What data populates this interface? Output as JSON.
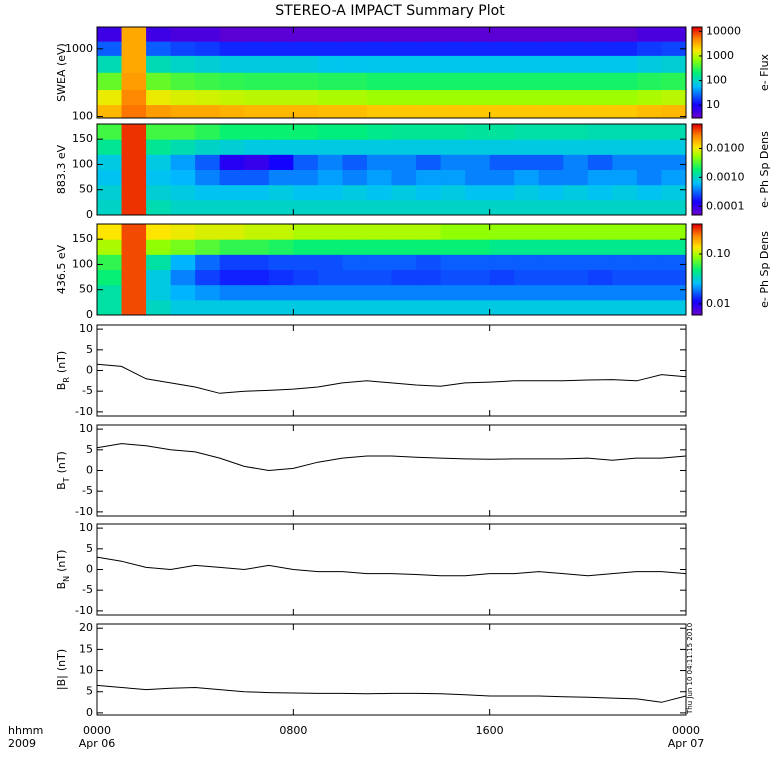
{
  "title": "STEREO-A IMPACT Summary Plot",
  "timestamp": "Thu Jun 10 04:11:15 2010",
  "chart_data": [
    {
      "type": "heatmap",
      "ylabel": "SWEA (eV)",
      "log_y": true,
      "ylim": [
        95,
        2100
      ],
      "yticks": [
        100,
        1000
      ],
      "xbins": [
        0,
        1,
        2,
        3,
        4,
        5,
        6,
        7,
        8,
        9,
        10,
        11,
        12,
        13,
        14,
        15,
        16,
        17,
        18,
        19,
        20,
        21,
        22,
        23,
        24
      ],
      "ybins": [
        95,
        150,
        250,
        450,
        800,
        1300,
        2100
      ],
      "values": [
        [
          3000,
          6000,
          4000,
          3500,
          3500,
          3200,
          3000,
          3000,
          3000,
          2800,
          2800,
          2500,
          2500,
          2500,
          2500,
          2500,
          2500,
          2500,
          2500,
          2500,
          2500,
          2500,
          2800,
          3000
        ],
        [
          1500,
          5000,
          1500,
          1300,
          1200,
          1100,
          1000,
          1000,
          1000,
          900,
          900,
          800,
          800,
          800,
          800,
          800,
          800,
          800,
          800,
          800,
          800,
          800,
          900,
          1000
        ],
        [
          500,
          4000,
          500,
          400,
          350,
          320,
          300,
          300,
          300,
          280,
          280,
          250,
          250,
          250,
          250,
          250,
          250,
          250,
          250,
          250,
          250,
          250,
          280,
          300
        ],
        [
          120,
          3500,
          120,
          100,
          90,
          80,
          80,
          80,
          80,
          70,
          70,
          70,
          70,
          70,
          70,
          70,
          70,
          70,
          70,
          70,
          70,
          70,
          80,
          90
        ],
        [
          25,
          3500,
          25,
          20,
          18,
          15,
          15,
          15,
          15,
          15,
          15,
          15,
          15,
          15,
          15,
          15,
          15,
          15,
          15,
          15,
          15,
          15,
          18,
          20
        ],
        [
          6,
          3500,
          6,
          5,
          5,
          4,
          4,
          4,
          4,
          4,
          4,
          4,
          4,
          4,
          4,
          4,
          4,
          4,
          4,
          4,
          4,
          4,
          5,
          5
        ]
      ],
      "log_z": true,
      "zlim": [
        3,
        15000
      ],
      "zticks": [
        10,
        100,
        1000,
        10000
      ],
      "zlabel": "e- Flux"
    },
    {
      "type": "heatmap",
      "ylabel": "883.3 eV",
      "ylim": [
        0,
        180
      ],
      "yticks": [
        0,
        50,
        100,
        150
      ],
      "xbins": [
        0,
        1,
        2,
        3,
        4,
        5,
        6,
        7,
        8,
        9,
        10,
        11,
        12,
        13,
        14,
        15,
        16,
        17,
        18,
        19,
        20,
        21,
        22,
        23,
        24
      ],
      "ybins": [
        0,
        30,
        60,
        90,
        120,
        150,
        180
      ],
      "values": [
        [
          0.001,
          0.05,
          0.0012,
          0.001,
          0.001,
          0.001,
          0.001,
          0.001,
          0.001,
          0.001,
          0.001,
          0.001,
          0.001,
          0.001,
          0.001,
          0.001,
          0.001,
          0.001,
          0.001,
          0.001,
          0.001,
          0.001,
          0.001,
          0.001
        ],
        [
          0.0009,
          0.05,
          0.0009,
          0.0008,
          0.0007,
          0.0007,
          0.0007,
          0.0008,
          0.0007,
          0.0007,
          0.0008,
          0.0007,
          0.0008,
          0.0007,
          0.0008,
          0.0007,
          0.0007,
          0.0008,
          0.0007,
          0.0008,
          0.0007,
          0.0008,
          0.0007,
          0.0008
        ],
        [
          0.0007,
          0.05,
          0.0007,
          0.0006,
          0.0004,
          0.0003,
          0.0003,
          0.0004,
          0.0004,
          0.0005,
          0.0004,
          0.0005,
          0.0004,
          0.0005,
          0.0005,
          0.0004,
          0.0004,
          0.0005,
          0.0004,
          0.0004,
          0.0005,
          0.0005,
          0.0004,
          0.0005
        ],
        [
          0.0008,
          0.05,
          0.0008,
          0.0005,
          0.0003,
          0.00012,
          0.0001,
          0.00015,
          0.0003,
          0.0004,
          0.0003,
          0.0004,
          0.0004,
          0.0003,
          0.0004,
          0.0004,
          0.0003,
          0.0003,
          0.0003,
          0.0004,
          0.0003,
          0.0004,
          0.0004,
          0.0004
        ],
        [
          0.0015,
          0.05,
          0.0015,
          0.0012,
          0.001,
          0.0009,
          0.0008,
          0.0008,
          0.0008,
          0.0008,
          0.0008,
          0.0008,
          0.0008,
          0.0008,
          0.0008,
          0.0008,
          0.0008,
          0.0008,
          0.0008,
          0.0008,
          0.0008,
          0.0008,
          0.0008,
          0.0008
        ],
        [
          0.003,
          0.05,
          0.003,
          0.003,
          0.0025,
          0.002,
          0.002,
          0.002,
          0.002,
          0.0018,
          0.0018,
          0.0016,
          0.0015,
          0.0015,
          0.0015,
          0.0014,
          0.0014,
          0.0013,
          0.0013,
          0.0013,
          0.0012,
          0.0012,
          0.0012,
          0.0012
        ]
      ],
      "log_z": true,
      "zlim": [
        5e-05,
        0.07
      ],
      "zticks": [
        0.0001,
        {
          "value": 0.001,
          "label": "0.0010"
        },
        {
          "value": 0.01,
          "label": "0.0100"
        }
      ],
      "zlabel": "e- Ph Sp Dens"
    },
    {
      "type": "heatmap",
      "ylabel": "436.5 eV",
      "ylim": [
        0,
        180
      ],
      "yticks": [
        0,
        50,
        100,
        150
      ],
      "xbins": [
        0,
        1,
        2,
        3,
        4,
        5,
        6,
        7,
        8,
        9,
        10,
        11,
        12,
        13,
        14,
        15,
        16,
        17,
        18,
        19,
        20,
        21,
        22,
        23,
        24
      ],
      "ybins": [
        0,
        30,
        60,
        90,
        120,
        150,
        180
      ],
      "values": [
        [
          0.04,
          0.3,
          0.035,
          0.03,
          0.03,
          0.03,
          0.03,
          0.03,
          0.03,
          0.03,
          0.03,
          0.03,
          0.03,
          0.03,
          0.03,
          0.03,
          0.03,
          0.03,
          0.03,
          0.03,
          0.03,
          0.03,
          0.03,
          0.03
        ],
        [
          0.04,
          0.3,
          0.03,
          0.025,
          0.022,
          0.02,
          0.02,
          0.02,
          0.02,
          0.02,
          0.02,
          0.02,
          0.02,
          0.02,
          0.02,
          0.02,
          0.02,
          0.02,
          0.02,
          0.02,
          0.02,
          0.02,
          0.02,
          0.02
        ],
        [
          0.05,
          0.3,
          0.03,
          0.02,
          0.015,
          0.013,
          0.013,
          0.014,
          0.015,
          0.016,
          0.016,
          0.016,
          0.015,
          0.015,
          0.016,
          0.016,
          0.015,
          0.016,
          0.016,
          0.016,
          0.015,
          0.016,
          0.016,
          0.016
        ],
        [
          0.06,
          0.3,
          0.04,
          0.025,
          0.018,
          0.015,
          0.015,
          0.016,
          0.016,
          0.016,
          0.017,
          0.017,
          0.017,
          0.016,
          0.017,
          0.017,
          0.017,
          0.017,
          0.017,
          0.017,
          0.017,
          0.017,
          0.017,
          0.017
        ],
        [
          0.1,
          0.3,
          0.09,
          0.08,
          0.07,
          0.06,
          0.06,
          0.055,
          0.05,
          0.05,
          0.05,
          0.05,
          0.05,
          0.05,
          0.05,
          0.05,
          0.045,
          0.045,
          0.045,
          0.045,
          0.045,
          0.045,
          0.045,
          0.045
        ],
        [
          0.14,
          0.3,
          0.14,
          0.13,
          0.12,
          0.12,
          0.11,
          0.11,
          0.1,
          0.1,
          0.1,
          0.1,
          0.1,
          0.1,
          0.09,
          0.09,
          0.09,
          0.09,
          0.09,
          0.09,
          0.09,
          0.09,
          0.09,
          0.09
        ]
      ],
      "log_z": true,
      "zlim": [
        0.006,
        0.4
      ],
      "zticks": [
        0.01,
        {
          "value": 0.1,
          "label": "0.10"
        }
      ],
      "zlabel": "e- Ph Sp Dens"
    },
    {
      "type": "line",
      "ylabel": "B",
      "ylabel_sub": "R",
      "ylabel_unit": "(nT)",
      "ylim": [
        -11,
        11
      ],
      "yticks": [
        -10,
        -5,
        0,
        5,
        10
      ],
      "color": "#000000",
      "x": [
        0,
        1,
        2,
        3,
        4,
        5,
        6,
        7,
        8,
        9,
        10,
        11,
        12,
        13,
        14,
        15,
        16,
        17,
        18,
        19,
        20,
        21,
        22,
        23,
        24
      ],
      "values": [
        1.5,
        1,
        -2,
        -3,
        -4,
        -5.5,
        -5,
        -4.8,
        -4.5,
        -4,
        -3,
        -2.5,
        -3,
        -3.5,
        -3.8,
        -3,
        -2.8,
        -2.5,
        -2.5,
        -2.5,
        -2.3,
        -2.2,
        -2.5,
        -1,
        -1.5
      ]
    },
    {
      "type": "line",
      "ylabel": "B",
      "ylabel_sub": "T",
      "ylabel_unit": "(nT)",
      "ylim": [
        -11,
        11
      ],
      "yticks": [
        -10,
        -5,
        0,
        5,
        10
      ],
      "color": "#000000",
      "x": [
        0,
        1,
        2,
        3,
        4,
        5,
        6,
        7,
        8,
        9,
        10,
        11,
        12,
        13,
        14,
        15,
        16,
        17,
        18,
        19,
        20,
        21,
        22,
        23,
        24
      ],
      "values": [
        5.5,
        6.5,
        6,
        5,
        4.5,
        3,
        1,
        0,
        0.5,
        2,
        3,
        3.5,
        3.5,
        3.2,
        3,
        2.8,
        2.7,
        2.8,
        2.8,
        2.8,
        3,
        2.5,
        3,
        3,
        3.5
      ]
    },
    {
      "type": "line",
      "ylabel": "B",
      "ylabel_sub": "N",
      "ylabel_unit": "(nT)",
      "ylim": [
        -11,
        11
      ],
      "yticks": [
        -10,
        -5,
        0,
        5,
        10
      ],
      "color": "#000000",
      "x": [
        0,
        1,
        2,
        3,
        4,
        5,
        6,
        7,
        8,
        9,
        10,
        11,
        12,
        13,
        14,
        15,
        16,
        17,
        18,
        19,
        20,
        21,
        22,
        23,
        24
      ],
      "values": [
        3,
        2,
        0.5,
        0,
        1,
        0.5,
        0,
        1,
        0,
        -0.5,
        -0.5,
        -1,
        -1,
        -1.2,
        -1.5,
        -1.5,
        -1,
        -1,
        -0.5,
        -1,
        -1.5,
        -1,
        -0.5,
        -0.5,
        -1
      ]
    },
    {
      "type": "line",
      "ylabel": "|B|",
      "ylabel_unit": "(nT)",
      "ylim": [
        -0.5,
        21
      ],
      "yticks": [
        0,
        5,
        10,
        15,
        20
      ],
      "color": "#000000",
      "x": [
        0,
        1,
        2,
        3,
        4,
        5,
        6,
        7,
        8,
        9,
        10,
        11,
        12,
        13,
        14,
        15,
        16,
        17,
        18,
        19,
        20,
        21,
        22,
        23,
        24
      ],
      "values": [
        6.5,
        6,
        5.5,
        5.8,
        6,
        5.5,
        5,
        4.8,
        4.7,
        4.6,
        4.6,
        4.5,
        4.6,
        4.6,
        4.5,
        4.3,
        4,
        4,
        4,
        3.8,
        3.7,
        3.5,
        3.3,
        2.5,
        4
      ],
      "xlim": [
        0,
        24
      ],
      "xticks": [
        {
          "value": 0,
          "label": "0000"
        },
        {
          "value": 8,
          "label": "0800"
        },
        {
          "value": 16,
          "label": "1600"
        },
        {
          "value": 24,
          "label": "0000"
        }
      ],
      "xtick_dates": [
        "Apr 06",
        null,
        null,
        "Apr 07"
      ],
      "x_label_lines": [
        "hhmm",
        "2009"
      ]
    }
  ]
}
